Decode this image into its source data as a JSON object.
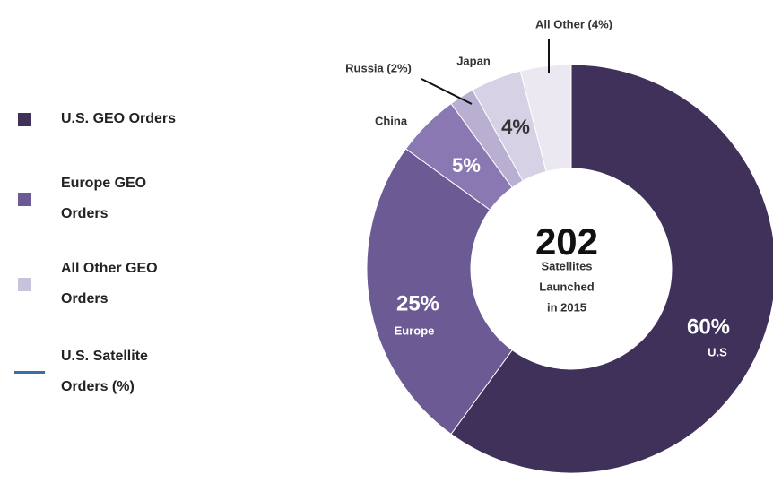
{
  "chart_data": {
    "type": "donut",
    "categories": [
      "U.S",
      "Europe",
      "China",
      "Russia (2%)",
      "Japan",
      "All Other (4%)"
    ],
    "values": [
      60,
      25,
      5,
      2,
      4,
      4
    ],
    "value_labels": [
      "60%",
      "25%",
      "5%",
      null,
      "4%",
      null
    ],
    "colors": [
      "#3f3159",
      "#6b5a93",
      "#8a78b3",
      "#b9afd0",
      "#d6d1e4",
      "#ebe8f1"
    ],
    "center_value": "202",
    "center_text": [
      "Satellites",
      "Launched",
      "in 2015"
    ],
    "legend": [
      {
        "name": "U.S. GEO Orders",
        "color": "#3f3159",
        "marker": "square"
      },
      {
        "name": "Europe GEO Orders",
        "color": "#6b5a93",
        "marker": "square"
      },
      {
        "name": "All Other GEO Orders",
        "color": "#c9c2dc",
        "marker": "square"
      },
      {
        "name": "U.S. Satellite Orders (%)",
        "color": "#3a6ea5",
        "marker": "line"
      }
    ]
  }
}
